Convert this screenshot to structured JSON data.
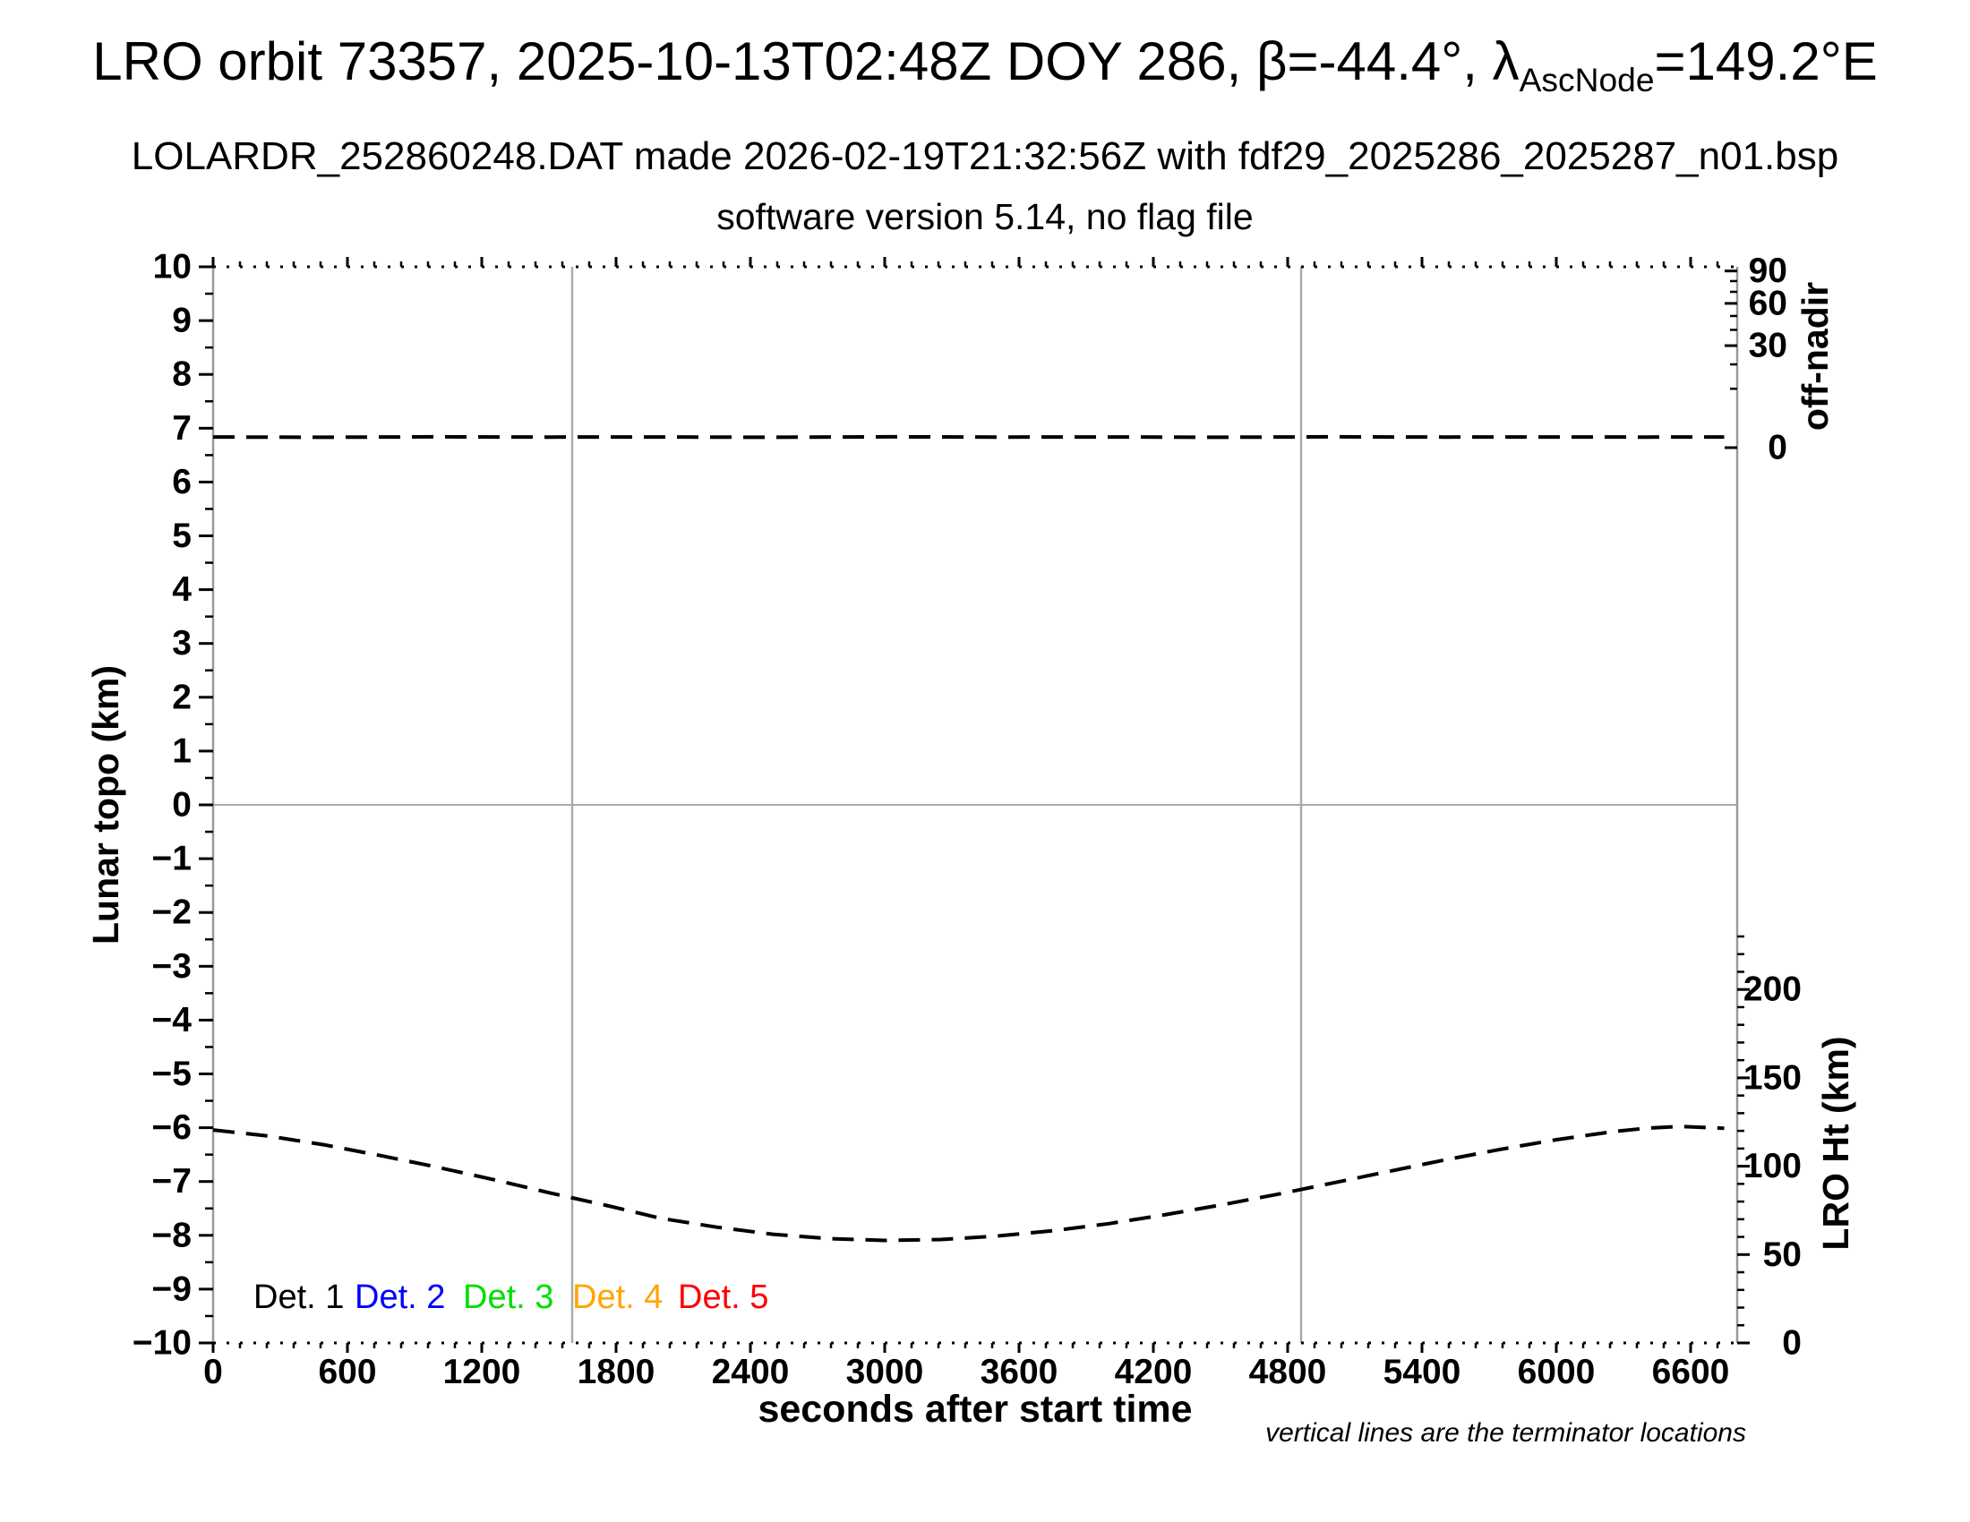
{
  "header": {
    "title_main": "LRO orbit 73357, 2025-10-13T02:48Z DOY 286, β=-44.4°, λ",
    "title_sub": "AscNode",
    "title_tail": "=149.2°E",
    "subtitle": "LOLARDR_252860248.DAT made 2026-02-19T21:32:56Z with fdf29_2025286_2025287_n01.bsp",
    "subsubtitle": "software version 5.14, no flag file"
  },
  "axes": {
    "x": {
      "label": "seconds after start time",
      "min": 0,
      "max": 6808,
      "major_step": 600,
      "minor_step": 120,
      "tick_labels": [
        "0",
        "600",
        "1200",
        "1800",
        "2400",
        "3000",
        "3600",
        "4200",
        "4800",
        "5400",
        "6000",
        "6600"
      ]
    },
    "y_left": {
      "label": "Lunar topo (km)",
      "min": -10,
      "max": 10,
      "major_step": 1,
      "minor_step": 0.5,
      "tick_labels": [
        "10",
        "9",
        "8",
        "7",
        "6",
        "5",
        "4",
        "3",
        "2",
        "1",
        "0",
        "−1",
        "−2",
        "−3",
        "−4",
        "−5",
        "−6",
        "−7",
        "−8",
        "−9",
        "−10"
      ]
    },
    "y_right_top": {
      "label": "off-nadir",
      "scale": "sqrt",
      "min": 0,
      "max": 90,
      "minor_step": 10,
      "major_values": [
        90,
        60,
        30,
        0
      ],
      "tick_labels": [
        "90",
        "60",
        "30",
        "0"
      ]
    },
    "y_right_bottom": {
      "label": "LRO Ht (km)",
      "min": 0,
      "max": 230,
      "major_step": 50,
      "minor_step": 10,
      "major_values": [
        200,
        150,
        100,
        50,
        0
      ],
      "tick_labels": [
        "200",
        "150",
        "100",
        "50",
        "0"
      ]
    }
  },
  "legend": {
    "items": [
      {
        "label": "Det. 1",
        "color": "#000000"
      },
      {
        "label": "Det. 2",
        "color": "#0000ff"
      },
      {
        "label": "Det. 3",
        "color": "#00dd00"
      },
      {
        "label": "Det. 4",
        "color": "#ffa500"
      },
      {
        "label": "Det. 5",
        "color": "#ff0000"
      }
    ]
  },
  "footnote": "vertical lines are the terminator locations",
  "chart_data": {
    "type": "line",
    "title": "LRO orbit 73357, 2025-10-13T02:48Z DOY 286, β=-44.4°, λ_AscNode=149.2°E",
    "xlabel": "seconds after start time",
    "ylabel_left": "Lunar topo (km)",
    "ylabel_right_top": "off-nadir",
    "ylabel_right_bottom": "LRO Ht (km)",
    "xlim": [
      0,
      6808
    ],
    "ylim_left": [
      -10,
      10
    ],
    "ylim_right_bottom_km": [
      0,
      230
    ],
    "grid": {
      "zero_line_topo": 0,
      "terminator_lines_s": [
        1604,
        4860
      ]
    },
    "legend_position": "bottom-left",
    "annotation": "vertical lines are the terminator locations",
    "series": [
      {
        "name": "off-nadir angle",
        "axis": "right-top",
        "units": "deg",
        "style": "dashed",
        "color": "#000000",
        "points": [
          [
            0,
            0.33
          ],
          [
            500,
            0.31
          ],
          [
            1000,
            0.34
          ],
          [
            1500,
            0.32
          ],
          [
            2000,
            0.33
          ],
          [
            2500,
            0.31
          ],
          [
            3000,
            0.34
          ],
          [
            3500,
            0.32
          ],
          [
            4000,
            0.33
          ],
          [
            4500,
            0.31
          ],
          [
            5000,
            0.34
          ],
          [
            5500,
            0.32
          ],
          [
            6000,
            0.33
          ],
          [
            6400,
            0.32
          ],
          [
            6750,
            0.33
          ]
        ]
      },
      {
        "name": "LRO height",
        "axis": "right-bottom",
        "units": "km",
        "style": "dashed",
        "color": "#000000",
        "points": [
          [
            0,
            120.5
          ],
          [
            250,
            117
          ],
          [
            500,
            112
          ],
          [
            750,
            106
          ],
          [
            1000,
            99.5
          ],
          [
            1250,
            92.5
          ],
          [
            1500,
            85
          ],
          [
            1750,
            78
          ],
          [
            2000,
            70.5
          ],
          [
            2250,
            65.5
          ],
          [
            2500,
            61.5
          ],
          [
            2750,
            59
          ],
          [
            3000,
            58
          ],
          [
            3250,
            58.5
          ],
          [
            3500,
            60.5
          ],
          [
            3750,
            63.5
          ],
          [
            4000,
            67.5
          ],
          [
            4250,
            72.5
          ],
          [
            4500,
            78
          ],
          [
            4750,
            84
          ],
          [
            5000,
            90.5
          ],
          [
            5250,
            97
          ],
          [
            5500,
            103.5
          ],
          [
            5750,
            109.5
          ],
          [
            6000,
            115
          ],
          [
            6250,
            119.5
          ],
          [
            6400,
            121.5
          ],
          [
            6550,
            122.5
          ],
          [
            6750,
            121.5
          ]
        ]
      }
    ]
  }
}
